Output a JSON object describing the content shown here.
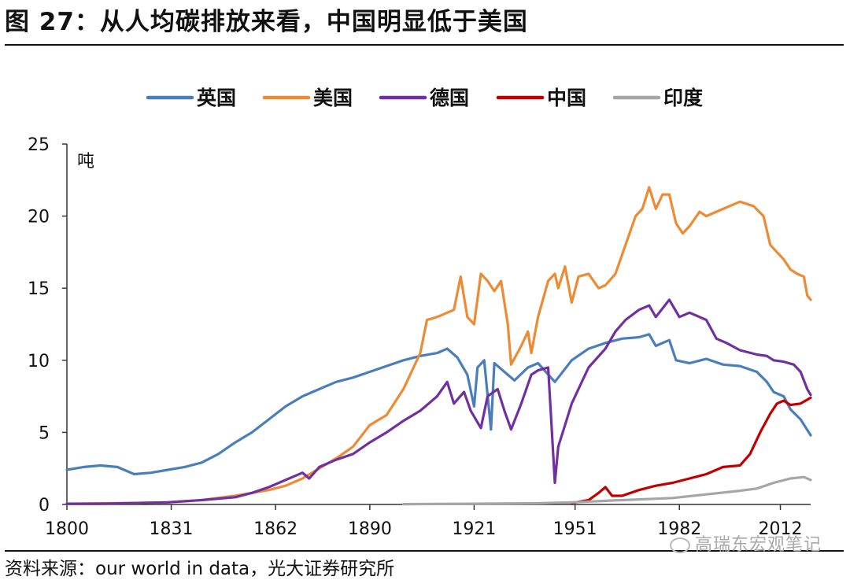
{
  "title": "图 27：从人均碳排放来看，中国明显低于美国",
  "source": "资料来源：our world in data，光大证券研究所",
  "watermark": "高瑞东宏观笔记",
  "chart_data": {
    "type": "line",
    "ylabel": "吨",
    "xlim": [
      1800,
      2021
    ],
    "ylim": [
      0,
      25
    ],
    "xticks": [
      "1800",
      "1831",
      "1862",
      "1890",
      "1921",
      "1951",
      "1982",
      "2012"
    ],
    "yticks": [
      "0",
      "5",
      "10",
      "15",
      "20",
      "25"
    ],
    "legend_position": "top",
    "series": [
      {
        "name": "英国",
        "color": "#4a7ebb",
        "points": [
          [
            1800,
            2.4
          ],
          [
            1805,
            2.6
          ],
          [
            1810,
            2.7
          ],
          [
            1815,
            2.6
          ],
          [
            1820,
            2.1
          ],
          [
            1825,
            2.2
          ],
          [
            1830,
            2.4
          ],
          [
            1835,
            2.6
          ],
          [
            1840,
            2.9
          ],
          [
            1845,
            3.5
          ],
          [
            1850,
            4.3
          ],
          [
            1855,
            5.0
          ],
          [
            1860,
            5.9
          ],
          [
            1865,
            6.8
          ],
          [
            1870,
            7.5
          ],
          [
            1875,
            8.0
          ],
          [
            1880,
            8.5
          ],
          [
            1885,
            8.8
          ],
          [
            1890,
            9.2
          ],
          [
            1895,
            9.6
          ],
          [
            1900,
            10.0
          ],
          [
            1905,
            10.3
          ],
          [
            1910,
            10.5
          ],
          [
            1913,
            10.8
          ],
          [
            1916,
            10.2
          ],
          [
            1919,
            9.0
          ],
          [
            1921,
            6.8
          ],
          [
            1922,
            9.5
          ],
          [
            1924,
            10.0
          ],
          [
            1926,
            5.2
          ],
          [
            1927,
            9.8
          ],
          [
            1930,
            9.2
          ],
          [
            1933,
            8.6
          ],
          [
            1937,
            9.5
          ],
          [
            1940,
            9.8
          ],
          [
            1945,
            8.5
          ],
          [
            1950,
            10.0
          ],
          [
            1955,
            10.8
          ],
          [
            1960,
            11.2
          ],
          [
            1965,
            11.5
          ],
          [
            1970,
            11.6
          ],
          [
            1973,
            11.8
          ],
          [
            1975,
            11.0
          ],
          [
            1979,
            11.4
          ],
          [
            1981,
            10.0
          ],
          [
            1985,
            9.8
          ],
          [
            1990,
            10.1
          ],
          [
            1995,
            9.7
          ],
          [
            2000,
            9.6
          ],
          [
            2005,
            9.2
          ],
          [
            2008,
            8.5
          ],
          [
            2010,
            7.8
          ],
          [
            2013,
            7.5
          ],
          [
            2015,
            6.6
          ],
          [
            2018,
            5.9
          ],
          [
            2021,
            4.8
          ]
        ]
      },
      {
        "name": "美国",
        "color": "#ed8b35",
        "points": [
          [
            1800,
            0.05
          ],
          [
            1820,
            0.1
          ],
          [
            1830,
            0.15
          ],
          [
            1840,
            0.3
          ],
          [
            1850,
            0.6
          ],
          [
            1860,
            1.0
          ],
          [
            1865,
            1.3
          ],
          [
            1870,
            1.8
          ],
          [
            1875,
            2.5
          ],
          [
            1880,
            3.2
          ],
          [
            1885,
            4.0
          ],
          [
            1890,
            5.5
          ],
          [
            1895,
            6.2
          ],
          [
            1900,
            8.0
          ],
          [
            1905,
            10.5
          ],
          [
            1907,
            12.8
          ],
          [
            1910,
            13.0
          ],
          [
            1915,
            13.5
          ],
          [
            1917,
            15.8
          ],
          [
            1919,
            13.0
          ],
          [
            1921,
            12.5
          ],
          [
            1923,
            16.0
          ],
          [
            1925,
            15.5
          ],
          [
            1927,
            14.8
          ],
          [
            1929,
            15.5
          ],
          [
            1931,
            12.5
          ],
          [
            1932,
            9.7
          ],
          [
            1935,
            11.0
          ],
          [
            1937,
            12.0
          ],
          [
            1938,
            10.5
          ],
          [
            1940,
            13.0
          ],
          [
            1943,
            15.5
          ],
          [
            1945,
            16.0
          ],
          [
            1946,
            15.0
          ],
          [
            1948,
            16.5
          ],
          [
            1950,
            14.0
          ],
          [
            1952,
            15.8
          ],
          [
            1955,
            16.0
          ],
          [
            1958,
            15.0
          ],
          [
            1960,
            15.2
          ],
          [
            1963,
            16.0
          ],
          [
            1966,
            18.0
          ],
          [
            1969,
            20.0
          ],
          [
            1971,
            20.5
          ],
          [
            1973,
            22.0
          ],
          [
            1975,
            20.5
          ],
          [
            1977,
            21.5
          ],
          [
            1979,
            21.5
          ],
          [
            1981,
            19.5
          ],
          [
            1983,
            18.8
          ],
          [
            1985,
            19.3
          ],
          [
            1988,
            20.3
          ],
          [
            1990,
            20.0
          ],
          [
            1995,
            20.5
          ],
          [
            2000,
            21.0
          ],
          [
            2004,
            20.7
          ],
          [
            2007,
            20.0
          ],
          [
            2009,
            18.0
          ],
          [
            2011,
            17.5
          ],
          [
            2013,
            17.0
          ],
          [
            2015,
            16.3
          ],
          [
            2017,
            16.0
          ],
          [
            2019,
            15.8
          ],
          [
            2020,
            14.5
          ],
          [
            2021,
            14.2
          ]
        ]
      },
      {
        "name": "德国",
        "color": "#7030a0",
        "points": [
          [
            1800,
            0.05
          ],
          [
            1810,
            0.05
          ],
          [
            1820,
            0.1
          ],
          [
            1830,
            0.15
          ],
          [
            1840,
            0.3
          ],
          [
            1850,
            0.5
          ],
          [
            1855,
            0.8
          ],
          [
            1860,
            1.2
          ],
          [
            1865,
            1.7
          ],
          [
            1870,
            2.2
          ],
          [
            1872,
            1.8
          ],
          [
            1875,
            2.6
          ],
          [
            1880,
            3.1
          ],
          [
            1885,
            3.5
          ],
          [
            1890,
            4.3
          ],
          [
            1895,
            5.0
          ],
          [
            1900,
            5.8
          ],
          [
            1905,
            6.5
          ],
          [
            1910,
            7.5
          ],
          [
            1913,
            8.5
          ],
          [
            1915,
            7.0
          ],
          [
            1918,
            7.8
          ],
          [
            1920,
            6.5
          ],
          [
            1923,
            5.3
          ],
          [
            1925,
            7.5
          ],
          [
            1928,
            8.0
          ],
          [
            1930,
            6.5
          ],
          [
            1932,
            5.2
          ],
          [
            1935,
            7.0
          ],
          [
            1938,
            9.0
          ],
          [
            1940,
            9.3
          ],
          [
            1943,
            9.5
          ],
          [
            1945,
            1.5
          ],
          [
            1946,
            4.0
          ],
          [
            1948,
            5.5
          ],
          [
            1950,
            7.0
          ],
          [
            1955,
            9.5
          ],
          [
            1960,
            10.8
          ],
          [
            1963,
            12.0
          ],
          [
            1966,
            12.8
          ],
          [
            1970,
            13.5
          ],
          [
            1973,
            13.8
          ],
          [
            1975,
            13.0
          ],
          [
            1979,
            14.2
          ],
          [
            1982,
            13.0
          ],
          [
            1985,
            13.3
          ],
          [
            1990,
            12.8
          ],
          [
            1993,
            11.5
          ],
          [
            1996,
            11.2
          ],
          [
            2000,
            10.7
          ],
          [
            2005,
            10.4
          ],
          [
            2008,
            10.3
          ],
          [
            2010,
            10.0
          ],
          [
            2013,
            9.9
          ],
          [
            2016,
            9.7
          ],
          [
            2018,
            9.2
          ],
          [
            2020,
            8.0
          ],
          [
            2021,
            7.6
          ]
        ]
      },
      {
        "name": "中国",
        "color": "#c00000",
        "points": [
          [
            1950,
            0.1
          ],
          [
            1955,
            0.3
          ],
          [
            1958,
            0.8
          ],
          [
            1960,
            1.2
          ],
          [
            1962,
            0.6
          ],
          [
            1965,
            0.6
          ],
          [
            1970,
            1.0
          ],
          [
            1975,
            1.3
          ],
          [
            1980,
            1.5
          ],
          [
            1985,
            1.8
          ],
          [
            1990,
            2.1
          ],
          [
            1995,
            2.6
          ],
          [
            2000,
            2.7
          ],
          [
            2003,
            3.5
          ],
          [
            2006,
            5.0
          ],
          [
            2009,
            6.3
          ],
          [
            2011,
            7.0
          ],
          [
            2013,
            7.2
          ],
          [
            2015,
            6.9
          ],
          [
            2018,
            7.0
          ],
          [
            2021,
            7.4
          ]
        ]
      },
      {
        "name": "印度",
        "color": "#a6a6a6",
        "points": [
          [
            1900,
            0.02
          ],
          [
            1920,
            0.05
          ],
          [
            1940,
            0.08
          ],
          [
            1950,
            0.15
          ],
          [
            1960,
            0.25
          ],
          [
            1970,
            0.35
          ],
          [
            1980,
            0.45
          ],
          [
            1990,
            0.7
          ],
          [
            2000,
            0.95
          ],
          [
            2005,
            1.1
          ],
          [
            2010,
            1.5
          ],
          [
            2015,
            1.8
          ],
          [
            2019,
            1.9
          ],
          [
            2021,
            1.7
          ]
        ]
      }
    ]
  }
}
